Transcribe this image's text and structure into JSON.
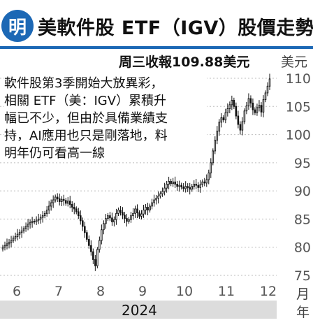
{
  "header": {
    "logo_char": "明",
    "title": "美軟件股 ETF（IGV）股價走勢"
  },
  "closing_label": "周三收報109.88美元",
  "note_lines": [
    "軟件股第3季開始大放異彩，",
    "相關 ETF（美：IGV）累積升",
    "幅已不少，但由於具備業績支",
    "持，AI應用也只是剛落地，料",
    "明年仍可看高一線"
  ],
  "units": {
    "y": "美元",
    "x": "月",
    "year_unit": "年"
  },
  "year": "2024",
  "colors": {
    "accent": "#1c68b5",
    "candle": "#111111",
    "grid": "#bdbdbd"
  },
  "chart_data": {
    "type": "candlestick",
    "title": "美軟件股 ETF（IGV）股價走勢",
    "ylabel": "美元",
    "xlabel": "月",
    "ylim": [
      75,
      110
    ],
    "yticks": [
      75,
      80,
      85,
      90,
      95,
      100,
      105,
      110
    ],
    "month_ticks": [
      "6",
      "7",
      "8",
      "9",
      "10",
      "11",
      "12"
    ],
    "month_tick_x": [
      6,
      7,
      8,
      9,
      10,
      11,
      12
    ],
    "x_range": [
      5.6,
      12.2
    ],
    "grid": "horizontal dashed",
    "last_close": 109.88,
    "closes": [
      80.0,
      80.3,
      80.6,
      80.9,
      81.2,
      81.6,
      81.9,
      82.3,
      82.6,
      82.9,
      83.3,
      83.7,
      84.1,
      84.4,
      84.6,
      84.5,
      84.8,
      85.0,
      85.3,
      85.6,
      86.0,
      86.6,
      87.3,
      87.9,
      88.4,
      88.9,
      88.6,
      88.1,
      88.5,
      88.3,
      87.8,
      88.2,
      87.6,
      87.1,
      86.8,
      86.3,
      85.6,
      84.7,
      83.7,
      82.6,
      81.4,
      80.3,
      79.2,
      77.8,
      76.7,
      79.6,
      81.2,
      83.1,
      84.2,
      85.1,
      85.6,
      85.2,
      84.5,
      84.9,
      86.0,
      86.6,
      86.2,
      85.7,
      85.1,
      84.6,
      84.9,
      85.6,
      86.0,
      86.8,
      86.1,
      85.5,
      85.9,
      86.6,
      87.1,
      86.6,
      87.3,
      87.9,
      88.4,
      88.7,
      89.1,
      89.5,
      89.9,
      90.5,
      91.2,
      91.7,
      91.3,
      91.6,
      91.2,
      90.8,
      91.0,
      90.7,
      90.4,
      90.8,
      90.6,
      90.3,
      90.8,
      91.2,
      91.0,
      90.6,
      91.1,
      91.6,
      91.4,
      92.0,
      93.2,
      95.0,
      97.1,
      99.0,
      100.6,
      102.2,
      103.0,
      102.6,
      103.9,
      104.6,
      105.3,
      106.1,
      105.0,
      103.3,
      101.8,
      100.8,
      102.3,
      104.2,
      105.1,
      106.4,
      105.6,
      104.4,
      103.9,
      104.8,
      105.2,
      104.0,
      106.2,
      107.4,
      108.6,
      109.88
    ]
  }
}
